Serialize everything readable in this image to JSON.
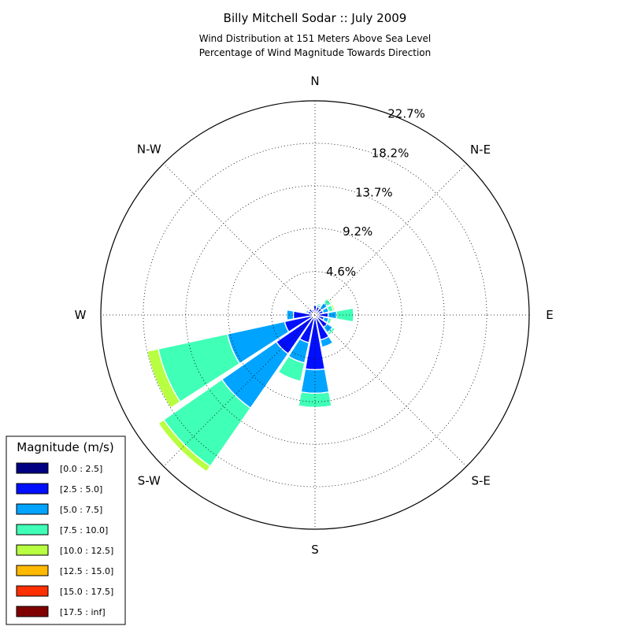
{
  "chart_data": {
    "type": "windrose",
    "title": "Billy Mitchell Sodar :: July 2009",
    "subtitle_lines": [
      "Wind Distribution at 151 Meters Above Sea Level",
      "Percentage of Wind Magnitude Towards Direction"
    ],
    "direction_labels": [
      "N",
      "N-E",
      "E",
      "S-E",
      "S",
      "S-W",
      "W",
      "N-W"
    ],
    "radial_tick_labels": [
      "4.6%",
      "9.2%",
      "13.7%",
      "18.2%",
      "22.7%"
    ],
    "radial_ticks": [
      4.6,
      9.2,
      13.7,
      18.2,
      22.7
    ],
    "rmax": 22.7,
    "grid": true,
    "legend": {
      "title": "Magnitude (m/s)",
      "placement": "bottom-left",
      "bins": [
        {
          "label": "[0.0 : 2.5]",
          "color": "#000080"
        },
        {
          "label": "[2.5 : 5.0]",
          "color": "#0010ff"
        },
        {
          "label": "[5.0 : 7.5]",
          "color": "#00a4ff"
        },
        {
          "label": "[7.5 : 10.0]",
          "color": "#40ffb7"
        },
        {
          "label": "[10.0 : 12.5]",
          "color": "#b7ff40"
        },
        {
          "label": "[12.5 : 15.0]",
          "color": "#ffb900"
        },
        {
          "label": "[15.0 : 17.5]",
          "color": "#ff3000"
        },
        {
          "label": "[17.5 : inf]",
          "color": "#800000"
        }
      ]
    },
    "sector_directions_deg": [
      0,
      22.5,
      45,
      67.5,
      90,
      112.5,
      135,
      157.5,
      180,
      202.5,
      225,
      247.5,
      270,
      292.5,
      315,
      337.5
    ],
    "cumulative_percent_by_sector": [
      [
        0.3,
        1.0,
        1.1,
        1.1,
        1.1,
        1.1,
        1.1,
        1.1
      ],
      [
        0.3,
        0.9,
        1.1,
        1.3,
        1.35,
        1.35,
        1.35,
        1.35
      ],
      [
        0.3,
        0.9,
        1.6,
        2.1,
        2.25,
        2.3,
        2.35,
        2.4
      ],
      [
        0.3,
        0.9,
        1.5,
        2.0,
        2.2,
        2.3,
        2.4,
        2.5
      ],
      [
        0.3,
        1.4,
        2.3,
        4.1,
        4.1,
        4.1,
        4.1,
        4.1
      ],
      [
        0.3,
        1.0,
        1.5,
        1.8,
        1.8,
        1.8,
        1.8,
        1.8
      ],
      [
        0.3,
        1.6,
        2.3,
        2.6,
        2.7,
        2.7,
        2.7,
        2.7
      ],
      [
        0.3,
        2.7,
        3.5,
        3.6,
        3.7,
        3.7,
        3.7,
        3.7
      ],
      [
        0.3,
        5.8,
        8.3,
        9.8,
        9.9,
        9.9,
        9.9,
        9.9
      ],
      [
        0.3,
        3.0,
        5.2,
        7.2,
        7.3,
        7.3,
        7.3,
        7.3
      ],
      [
        0.3,
        5.0,
        12.0,
        19.5,
        20.2,
        20.3,
        20.3,
        20.3
      ],
      [
        0.3,
        3.3,
        9.5,
        17.0,
        18.2,
        18.2,
        18.2,
        18.2
      ],
      [
        0.3,
        2.3,
        3.0,
        3.0,
        3.0,
        3.0,
        3.0,
        3.0
      ],
      [
        0.3,
        0.8,
        1.0,
        1.0,
        1.0,
        1.0,
        1.0,
        1.0
      ],
      [
        0.3,
        0.8,
        0.8,
        0.8,
        0.8,
        0.8,
        0.8,
        0.8
      ],
      [
        0.3,
        0.6,
        0.6,
        0.6,
        0.6,
        0.6,
        0.6,
        0.6
      ]
    ]
  }
}
